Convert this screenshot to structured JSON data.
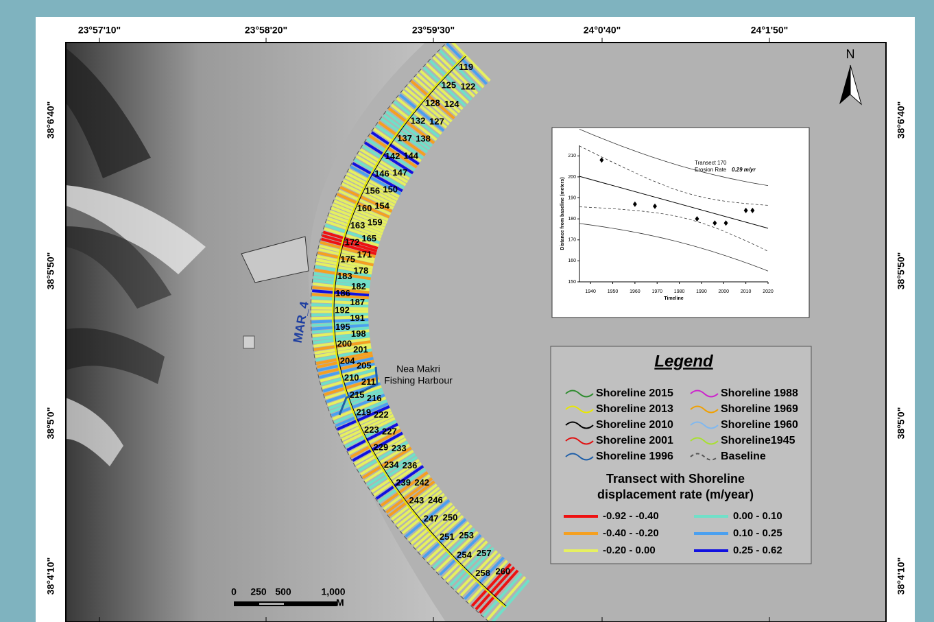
{
  "map": {
    "lon_labels": [
      "23°57'10\"",
      "23°58'20\"",
      "23°59'30\"",
      "24°0'40\"",
      "24°1'50\""
    ],
    "lat_labels": [
      "38°6'40\"",
      "38°5'50\"",
      "38°5'0\"",
      "38°4'10\""
    ],
    "north": "N",
    "baseline_label": "MAR_4",
    "place_label": [
      "Nea Makri",
      "Fishing Harbour"
    ],
    "transect_labels": [
      "119",
      "122",
      "125",
      "124",
      "128",
      "127",
      "132",
      "138",
      "137",
      "144",
      "142",
      "147",
      "146",
      "150",
      "156",
      "154",
      "160",
      "159",
      "163",
      "165",
      "172",
      "171",
      "175",
      "178",
      "183",
      "182",
      "186",
      "187",
      "192",
      "191",
      "195",
      "198",
      "200",
      "201",
      "204",
      "205",
      "210",
      "211",
      "215",
      "216",
      "219",
      "222",
      "223",
      "227",
      "229",
      "233",
      "234",
      "236",
      "239",
      "242",
      "243",
      "246",
      "247",
      "250",
      "251",
      "253",
      "254",
      "257",
      "258",
      "260"
    ],
    "scale": {
      "labels": [
        "0",
        "250",
        "500",
        "1,000"
      ],
      "unit": "M"
    }
  },
  "legend": {
    "title": "Legend",
    "shorelines": [
      {
        "label": "Shoreline 2015",
        "color": "#2e8b2e"
      },
      {
        "label": "Shoreline 1988",
        "color": "#cc22cc"
      },
      {
        "label": "Shoreline 2013",
        "color": "#e8e800"
      },
      {
        "label": "Shoreline 1969",
        "color": "#f0a000"
      },
      {
        "label": "Shoreline 2010",
        "color": "#000000"
      },
      {
        "label": "Shoreline 1960",
        "color": "#7fb8f0"
      },
      {
        "label": "Shoreline 2001",
        "color": "#e01010"
      },
      {
        "label": "Shoreline1945",
        "color": "#a8e030"
      },
      {
        "label": "Shoreline 1996",
        "color": "#1f5fa8"
      },
      {
        "label": "Baseline",
        "color": "#555555"
      }
    ],
    "transect_title": [
      "Transect with Shoreline",
      "displacement rate (m/year)"
    ],
    "classes": [
      {
        "label": "-0.92 - -0.40",
        "color": "#ee1111"
      },
      {
        "label": "0.00 - 0.10",
        "color": "#70e0c8"
      },
      {
        "label": "-0.40 - -0.20",
        "color": "#f5a020"
      },
      {
        "label": "0.10 - 0.25",
        "color": "#4aa0f0"
      },
      {
        "label": "-0.20 - 0.00",
        "color": "#e6f060"
      },
      {
        "label": "0.25 - 0.62",
        "color": "#1010e0"
      }
    ]
  },
  "chart_data": {
    "type": "scatter",
    "annotations": [
      "Transect 170",
      "Erosion Rate",
      "0.29 m/yr"
    ],
    "x_label": "Timeline",
    "y_label": "Distance from baseline (meters)",
    "x": [
      1945,
      1960,
      1969,
      1988,
      1996,
      2001,
      2010,
      2013
    ],
    "values": [
      208,
      187,
      186,
      180,
      178,
      178,
      184,
      184
    ],
    "color": "#000000",
    "xlim": [
      1935,
      2020
    ],
    "xticks": [
      1940,
      1950,
      1960,
      1970,
      1980,
      1990,
      2000,
      2010,
      2020
    ],
    "ylim": [
      150,
      215
    ],
    "yticks": [
      150,
      160,
      170,
      180,
      190,
      200,
      210
    ]
  }
}
